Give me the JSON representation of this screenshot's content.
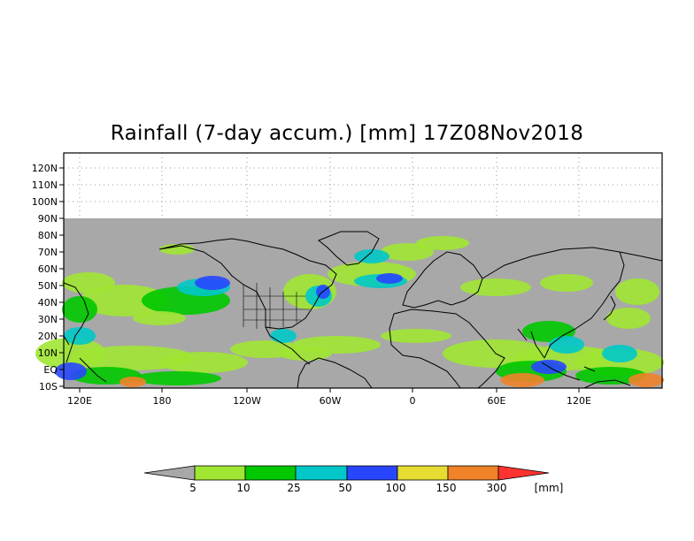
{
  "title": "Rainfall (7-day accum.) [mm] 17Z08Nov2018",
  "lat_labels": [
    "120N",
    "110N",
    "100N",
    "90N",
    "80N",
    "70N",
    "60N",
    "50N",
    "40N",
    "30N",
    "20N",
    "10N",
    "EQ",
    "10S"
  ],
  "lon_labels": [
    "120E",
    "180",
    "120W",
    "60W",
    "0",
    "60E",
    "120E"
  ],
  "colorbar": {
    "unit": "[mm]",
    "thresholds": [
      "5",
      "10",
      "25",
      "50",
      "100",
      "150",
      "300"
    ],
    "colors": {
      "below": "#a8a8a8",
      "c1": "#a0e632",
      "c2": "#00c800",
      "c3": "#00c8c8",
      "c4": "#2846ff",
      "c5": "#e6dc32",
      "c6": "#f08228",
      "above": "#ff3232"
    }
  },
  "colors": {
    "no_data_band": "#a8a8a8",
    "ocean_dry": "#a8a8a8",
    "frame": "#000000",
    "grid": "#9a9a9a"
  }
}
